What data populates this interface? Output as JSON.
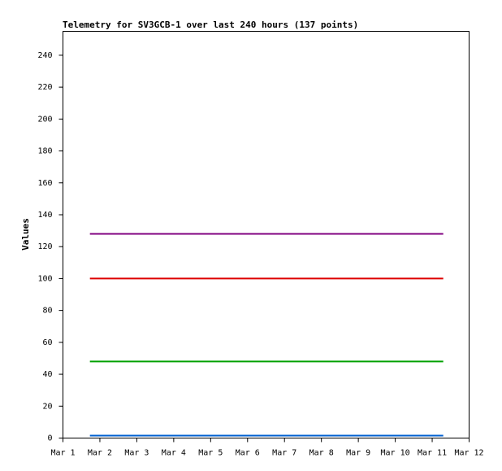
{
  "chart_data": {
    "type": "line",
    "title": "Telemetry for SV3GCB-1 over last 240 hours (137 points)",
    "y_label": "Values",
    "x": [
      1.73,
      11.3
    ],
    "series": [
      {
        "color": "#800080",
        "values": [
          128,
          128
        ]
      },
      {
        "color": "#dd0000",
        "values": [
          100,
          100
        ]
      },
      {
        "color": "#00a000",
        "values": [
          48,
          48
        ]
      },
      {
        "color": "#0060d0",
        "values": [
          1.5,
          1.5
        ]
      }
    ],
    "xlim": [
      1,
      12
    ],
    "xticks": [
      {
        "value": 1,
        "label": "Mar 1"
      },
      {
        "value": 2,
        "label": "Mar 2"
      },
      {
        "value": 3,
        "label": "Mar 3"
      },
      {
        "value": 4,
        "label": "Mar 4"
      },
      {
        "value": 5,
        "label": "Mar 5"
      },
      {
        "value": 6,
        "label": "Mar 6"
      },
      {
        "value": 7,
        "label": "Mar 7"
      },
      {
        "value": 8,
        "label": "Mar 8"
      },
      {
        "value": 9,
        "label": "Mar 9"
      },
      {
        "value": 10,
        "label": "Mar 10"
      },
      {
        "value": 11,
        "label": "Mar 11"
      },
      {
        "value": 12,
        "label": "Mar 12"
      }
    ],
    "ylim": [
      0,
      255
    ],
    "yticks": [
      0,
      20,
      40,
      60,
      80,
      100,
      120,
      140,
      160,
      180,
      200,
      220,
      240
    ],
    "grid": false
  }
}
